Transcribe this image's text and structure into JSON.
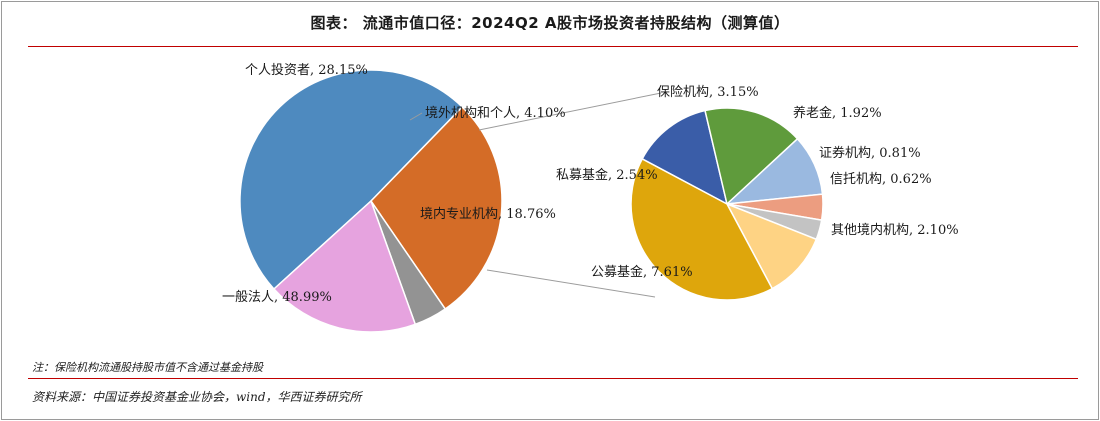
{
  "title": "图表： 流通市值口径：2024Q2 A股市场投资者持股结构（测算值）",
  "note": "注：保险机构流通股持股市值不含通过基金持股",
  "source": "资料来源：中国证券投资基金业协会，wind，华西证券研究所",
  "chart_data": [
    {
      "type": "pie",
      "slices": [
        {
          "name": "一般法人",
          "value": 48.99,
          "label": "一般法人, 48.99%",
          "color": "#4e8abf"
        },
        {
          "name": "个人投资者",
          "value": 28.15,
          "label": "个人投资者, 28.15%",
          "color": "#d46c27"
        },
        {
          "name": "境外机构和个人",
          "value": 4.1,
          "label": "境外机构和个人, 4.10%",
          "color": "#939393"
        },
        {
          "name": "境内专业机构",
          "value": 18.76,
          "label": "境内专业机构, 18.76%",
          "color": "#e6a3df"
        }
      ]
    },
    {
      "type": "pie",
      "breakdown_of": "境内专业机构",
      "slices": [
        {
          "name": "私募基金",
          "value": 2.54,
          "label": "私募基金, 2.54%",
          "color": "#3a5da8"
        },
        {
          "name": "保险机构",
          "value": 3.15,
          "label": "保险机构, 3.15%",
          "color": "#5f9b3c"
        },
        {
          "name": "养老金",
          "value": 1.92,
          "label": "养老金, 1.92%",
          "color": "#9ab9e0"
        },
        {
          "name": "证券机构",
          "value": 0.81,
          "label": "证券机构, 0.81%",
          "color": "#ec9d80"
        },
        {
          "name": "信托机构",
          "value": 0.62,
          "label": "信托机构, 0.62%",
          "color": "#c3c3c3"
        },
        {
          "name": "其他境内机构",
          "value": 2.1,
          "label": "其他境内机构, 2.10%",
          "color": "#fed384"
        },
        {
          "name": "公募基金",
          "value": 7.61,
          "label": "公募基金, 7.61%",
          "color": "#dea60c"
        }
      ]
    }
  ]
}
